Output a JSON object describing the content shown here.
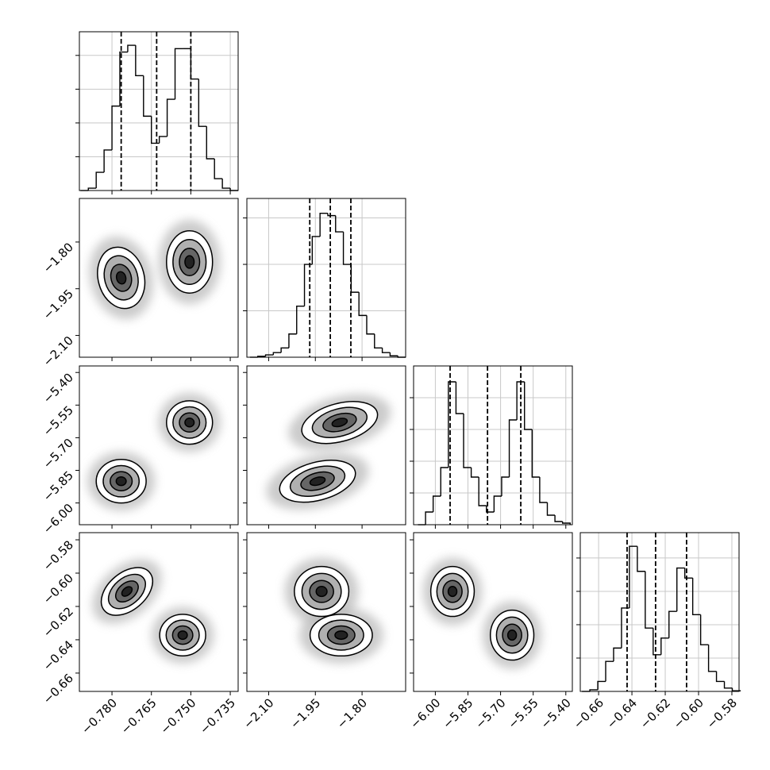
{
  "chart_data": {
    "type": "corner",
    "params": [
      {
        "lim": [
          -0.7924,
          -0.732
        ],
        "ticks": [
          {
            "value": -0.78,
            "label": "−0.780"
          },
          {
            "value": -0.765,
            "label": "−0.765"
          },
          {
            "value": -0.75,
            "label": "−0.750"
          },
          {
            "value": -0.735,
            "label": "−0.735"
          }
        ],
        "quantiles": [
          -0.7765,
          -0.763,
          -0.75
        ],
        "bins": [
          -0.792,
          -0.789,
          -0.786,
          -0.783,
          -0.78,
          -0.777,
          -0.774,
          -0.771,
          -0.768,
          -0.765,
          -0.762,
          -0.759,
          -0.756,
          -0.753,
          -0.75,
          -0.747,
          -0.744,
          -0.741,
          -0.738,
          -0.735,
          -0.732
        ],
        "counts": [
          0,
          0.07,
          0.54,
          1.2,
          2.5,
          4.1,
          4.3,
          3.4,
          2.2,
          1.4,
          1.6,
          2.7,
          4.2,
          4.2,
          3.3,
          1.9,
          0.94,
          0.35,
          0.07,
          0
        ],
        "ylim": [
          0,
          4.7
        ],
        "yticks": [
          1,
          2,
          3,
          4
        ]
      },
      {
        "lim": [
          -2.17,
          -1.66
        ],
        "ticks": [
          {
            "value": -2.1,
            "label": "−2.10"
          },
          {
            "value": -1.95,
            "label": "−1.95"
          },
          {
            "value": -1.8,
            "label": "−1.80"
          }
        ],
        "quantiles": [
          -1.968,
          -1.902,
          -1.836
        ],
        "bins": [
          -2.16,
          -2.135,
          -2.11,
          -2.085,
          -2.06,
          -2.035,
          -2.01,
          -1.985,
          -1.96,
          -1.935,
          -1.91,
          -1.885,
          -1.86,
          -1.835,
          -1.81,
          -1.785,
          -1.76,
          -1.735,
          -1.71,
          -1.685,
          -1.66
        ],
        "counts": [
          0,
          0.02,
          0.05,
          0.1,
          0.2,
          0.5,
          1.1,
          2.0,
          2.6,
          3.1,
          3.05,
          2.7,
          2.0,
          1.4,
          0.9,
          0.5,
          0.2,
          0.1,
          0.03,
          0
        ],
        "ylim": [
          0,
          3.42
        ],
        "yticks": [
          1,
          2,
          3
        ]
      },
      {
        "lim": [
          -6.1,
          -5.37
        ],
        "ticks": [
          {
            "value": -6.0,
            "label": "−6.00"
          },
          {
            "value": -5.85,
            "label": "−5.85"
          },
          {
            "value": -5.7,
            "label": "−5.70"
          },
          {
            "value": -5.55,
            "label": "−5.55"
          },
          {
            "value": -5.4,
            "label": "−5.40"
          }
        ],
        "quantiles": [
          -5.932,
          -5.76,
          -5.607
        ],
        "bins": [
          -6.08,
          -6.045,
          -6.01,
          -5.975,
          -5.94,
          -5.905,
          -5.87,
          -5.835,
          -5.8,
          -5.765,
          -5.73,
          -5.695,
          -5.66,
          -5.625,
          -5.59,
          -5.555,
          -5.52,
          -5.485,
          -5.45,
          -5.415,
          -5.38
        ],
        "counts": [
          0,
          0.4,
          0.9,
          1.8,
          4.5,
          3.5,
          1.8,
          1.5,
          0.6,
          0.4,
          0.9,
          1.5,
          3.3,
          4.5,
          3.0,
          1.5,
          0.7,
          0.3,
          0.1,
          0.05
        ],
        "ylim": [
          0,
          5
        ],
        "yticks": [
          1,
          2,
          3,
          4
        ]
      },
      {
        "lim": [
          -0.671,
          -0.5757
        ],
        "ticks": [
          {
            "value": -0.66,
            "label": "−0.66"
          },
          {
            "value": -0.64,
            "label": "−0.64"
          },
          {
            "value": -0.62,
            "label": "−0.62"
          },
          {
            "value": -0.6,
            "label": "−0.60"
          },
          {
            "value": -0.58,
            "label": "−0.58"
          }
        ],
        "quantiles": [
          -0.6429,
          -0.6258,
          -0.6072
        ],
        "bins": [
          -0.67,
          -0.66525,
          -0.6605,
          -0.65575,
          -0.651,
          -0.64625,
          -0.6415,
          -0.63675,
          -0.632,
          -0.62725,
          -0.6225,
          -0.61775,
          -0.613,
          -0.60825,
          -0.6035,
          -0.59875,
          -0.594,
          -0.58925,
          -0.5845,
          -0.57975,
          -0.575
        ],
        "counts": [
          0,
          0.05,
          0.3,
          0.9,
          1.3,
          2.5,
          4.35,
          3.6,
          1.9,
          1.1,
          1.6,
          2.4,
          3.7,
          3.4,
          2.3,
          1.4,
          0.6,
          0.3,
          0.1,
          0.02
        ],
        "ylim": [
          0,
          4.76
        ],
        "yticks": [
          1,
          2,
          3,
          4
        ]
      }
    ],
    "contour_levels": [
      0.5,
      1.1,
      1.8,
      2.5
    ],
    "fill_colors": [
      "#222222",
      "#666666",
      "#b0b0b0",
      "#ffffff"
    ],
    "halo_color": "#b5b5b5",
    "grid": true,
    "panels": [
      {
        "x": 0,
        "y": 1,
        "modes": [
          {
            "cx": -0.7765,
            "cy": -1.915,
            "sx": 0.0035,
            "sy": 0.04,
            "rot": -15
          },
          {
            "cx": -0.7505,
            "cy": -1.864,
            "sx": 0.0035,
            "sy": 0.04,
            "rot": 0
          }
        ]
      },
      {
        "x": 0,
        "y": 2,
        "modes": [
          {
            "cx": -0.7765,
            "cy": -5.9,
            "sx": 0.0038,
            "sy": 0.04,
            "rot": 0
          },
          {
            "cx": -0.7505,
            "cy": -5.63,
            "sx": 0.0035,
            "sy": 0.04,
            "rot": 0
          }
        ]
      },
      {
        "x": 1,
        "y": 2,
        "modes": [
          {
            "cx": -1.943,
            "cy": -5.9,
            "sx": 0.05,
            "sy": 0.035,
            "rot": -15
          },
          {
            "cx": -1.872,
            "cy": -5.63,
            "sx": 0.05,
            "sy": 0.035,
            "rot": -15
          }
        ]
      },
      {
        "x": 0,
        "y": 3,
        "modes": [
          {
            "cx": -0.7743,
            "cy": -0.611,
            "sx": 0.0045,
            "sy": 0.0045,
            "rot": -40
          },
          {
            "cx": -0.7531,
            "cy": -0.6372,
            "sx": 0.0035,
            "sy": 0.005,
            "rot": 0
          }
        ]
      },
      {
        "x": 1,
        "y": 3,
        "modes": [
          {
            "cx": -1.93,
            "cy": -0.611,
            "sx": 0.035,
            "sy": 0.006,
            "rot": 0
          },
          {
            "cx": -1.867,
            "cy": -0.6372,
            "sx": 0.04,
            "sy": 0.005,
            "rot": 0
          }
        ]
      },
      {
        "x": 2,
        "y": 3,
        "modes": [
          {
            "cx": -5.921,
            "cy": -0.611,
            "sx": 0.04,
            "sy": 0.006,
            "rot": 0
          },
          {
            "cx": -5.647,
            "cy": -0.6372,
            "sx": 0.04,
            "sy": 0.006,
            "rot": 0
          }
        ]
      }
    ]
  }
}
